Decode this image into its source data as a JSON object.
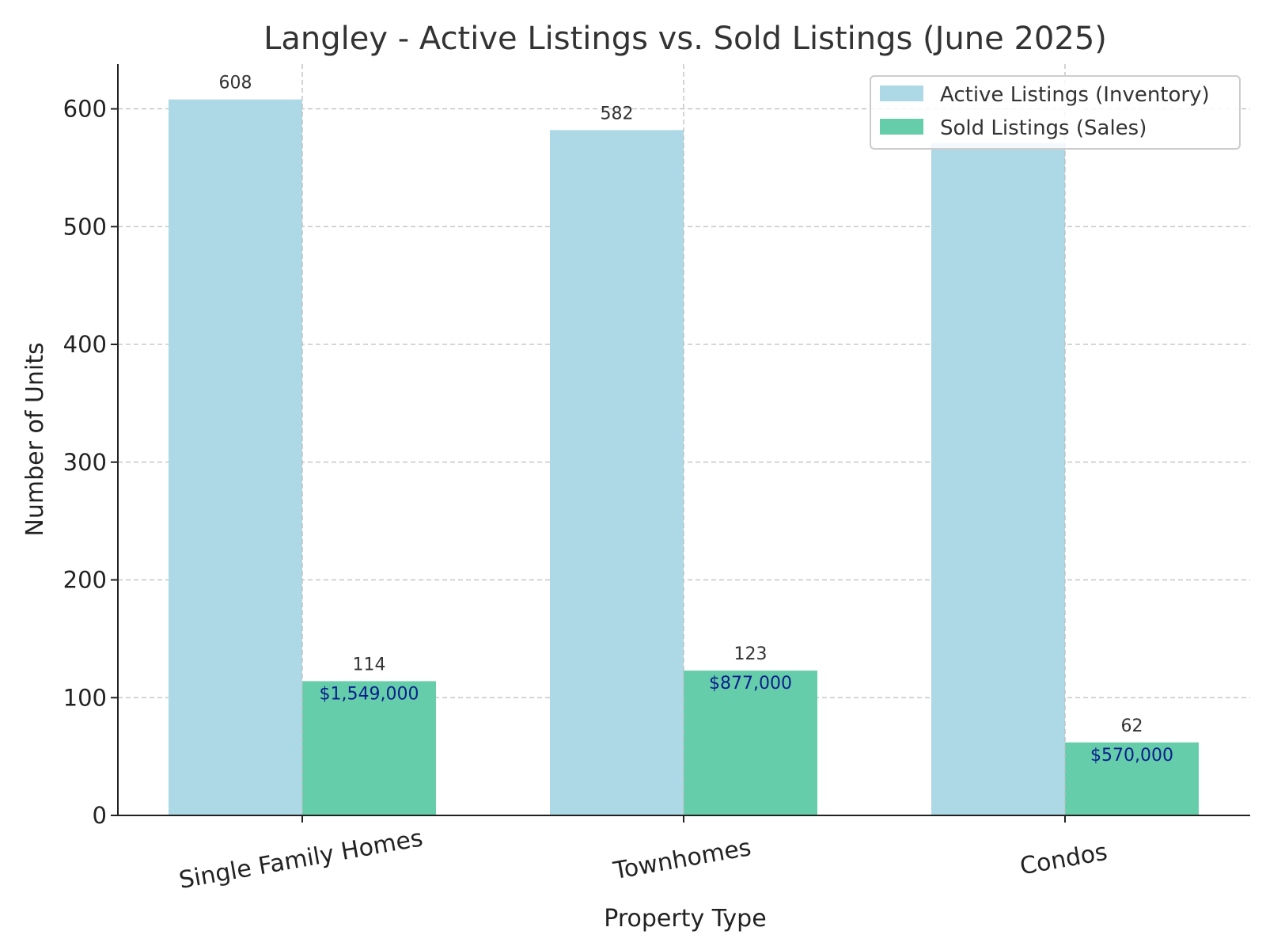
{
  "chart_data": {
    "type": "bar",
    "title": "Langley - Active Listings vs. Sold Listings (June 2025)",
    "xlabel": "Property Type",
    "ylabel": "Number of Units",
    "categories": [
      "Single Family Homes",
      "Townhomes",
      "Condos"
    ],
    "series": [
      {
        "name": "Active Listings (Inventory)",
        "color": "#add8e6",
        "values": [
          608,
          582,
          571
        ],
        "labels": [
          "608",
          "582",
          ""
        ]
      },
      {
        "name": "Sold Listings (Sales)",
        "color": "#66cdaa",
        "values": [
          114,
          123,
          62
        ],
        "labels": [
          "114",
          "123",
          "62"
        ]
      }
    ],
    "sold_price_labels": [
      "$1,549,000",
      "$877,000",
      "$570,000"
    ],
    "ylim": [
      0,
      638
    ],
    "yticks": [
      0,
      100,
      200,
      300,
      400,
      500,
      600
    ],
    "grid": true,
    "legend_position": "top-right"
  }
}
